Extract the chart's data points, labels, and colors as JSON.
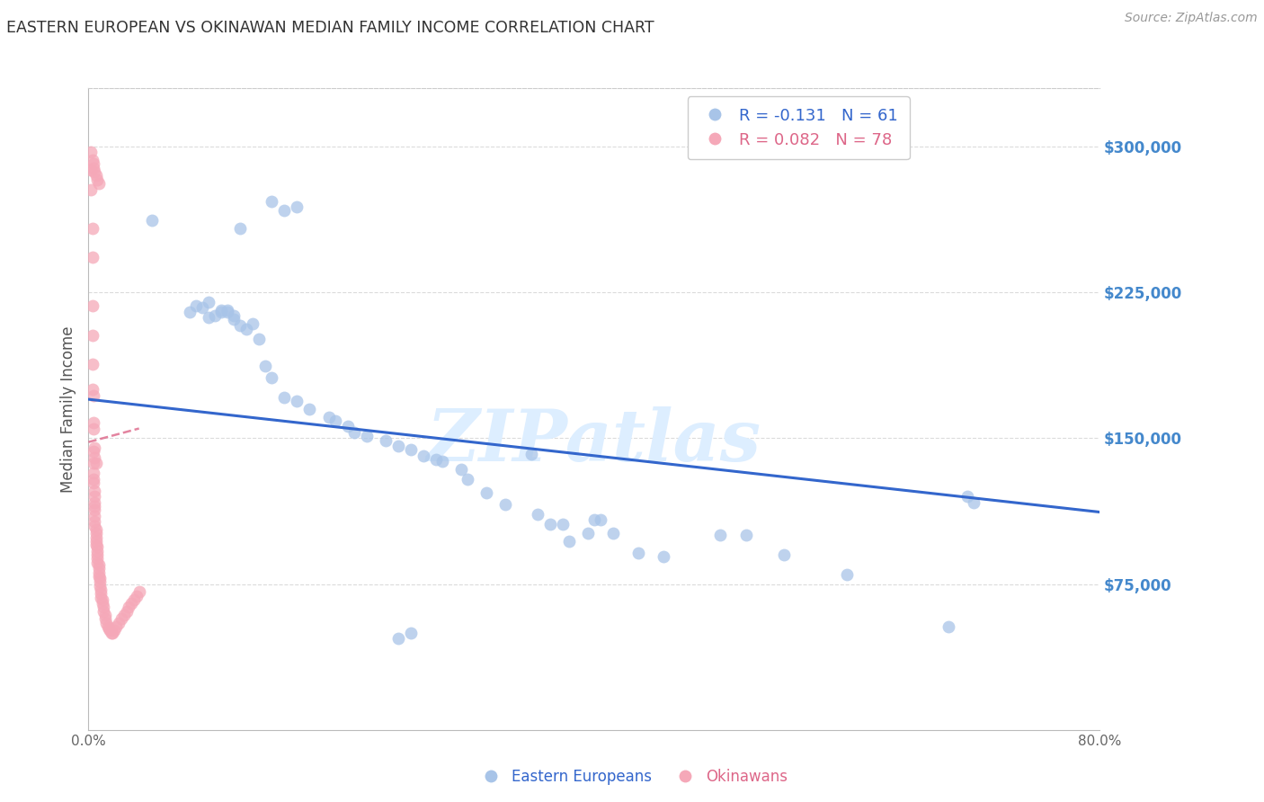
{
  "title": "EASTERN EUROPEAN VS OKINAWAN MEDIAN FAMILY INCOME CORRELATION CHART",
  "source": "Source: ZipAtlas.com",
  "ylabel": "Median Family Income",
  "ytick_labels": [
    "$75,000",
    "$150,000",
    "$225,000",
    "$300,000"
  ],
  "ytick_values": [
    75000,
    150000,
    225000,
    300000
  ],
  "ymin": 0,
  "ymax": 330000,
  "xmin": 0.0,
  "xmax": 0.8,
  "watermark": "ZIPatlas",
  "blue_scatter_x": [
    0.05,
    0.12,
    0.145,
    0.155,
    0.165,
    0.08,
    0.085,
    0.09,
    0.095,
    0.095,
    0.1,
    0.105,
    0.105,
    0.11,
    0.11,
    0.115,
    0.115,
    0.12,
    0.125,
    0.13,
    0.135,
    0.14,
    0.145,
    0.155,
    0.165,
    0.175,
    0.19,
    0.195,
    0.205,
    0.21,
    0.22,
    0.235,
    0.245,
    0.255,
    0.265,
    0.275,
    0.28,
    0.295,
    0.3,
    0.315,
    0.33,
    0.355,
    0.365,
    0.375,
    0.395,
    0.415,
    0.435,
    0.455,
    0.35,
    0.38,
    0.245,
    0.255,
    0.695,
    0.68,
    0.4,
    0.405,
    0.5,
    0.52,
    0.55,
    0.6,
    0.7
  ],
  "blue_scatter_y": [
    262000,
    258000,
    272000,
    267000,
    269000,
    215000,
    218000,
    217000,
    220000,
    212000,
    213000,
    216000,
    215000,
    216000,
    215000,
    213000,
    211000,
    208000,
    206000,
    209000,
    201000,
    187000,
    181000,
    171000,
    169000,
    165000,
    161000,
    159000,
    156000,
    153000,
    151000,
    149000,
    146000,
    144000,
    141000,
    139000,
    138000,
    134000,
    129000,
    122000,
    116000,
    111000,
    106000,
    106000,
    101000,
    101000,
    91000,
    89000,
    142000,
    97000,
    47000,
    50000,
    120000,
    53000,
    108000,
    108000,
    100000,
    100000,
    90000,
    80000,
    117000
  ],
  "pink_scatter_x": [
    0.002,
    0.002,
    0.003,
    0.003,
    0.003,
    0.003,
    0.003,
    0.004,
    0.004,
    0.004,
    0.004,
    0.004,
    0.004,
    0.004,
    0.005,
    0.005,
    0.005,
    0.005,
    0.005,
    0.005,
    0.005,
    0.005,
    0.006,
    0.006,
    0.006,
    0.006,
    0.006,
    0.007,
    0.007,
    0.007,
    0.007,
    0.007,
    0.008,
    0.008,
    0.008,
    0.008,
    0.009,
    0.009,
    0.009,
    0.01,
    0.01,
    0.01,
    0.011,
    0.011,
    0.012,
    0.012,
    0.013,
    0.013,
    0.014,
    0.015,
    0.016,
    0.017,
    0.018,
    0.019,
    0.02,
    0.022,
    0.024,
    0.026,
    0.028,
    0.03,
    0.032,
    0.034,
    0.036,
    0.038,
    0.04,
    0.002,
    0.003,
    0.004,
    0.004,
    0.005,
    0.006,
    0.007,
    0.008,
    0.003,
    0.004,
    0.005,
    0.005,
    0.006
  ],
  "pink_scatter_y": [
    288000,
    278000,
    258000,
    243000,
    218000,
    203000,
    188000,
    172000,
    158000,
    143000,
    137000,
    132000,
    129000,
    127000,
    123000,
    120000,
    117000,
    115000,
    113000,
    110000,
    107000,
    105000,
    103000,
    101000,
    99000,
    97000,
    95000,
    94000,
    92000,
    90000,
    88000,
    86000,
    85000,
    83000,
    81000,
    79000,
    78000,
    76000,
    74000,
    72000,
    70000,
    68000,
    67000,
    65000,
    63000,
    61000,
    59000,
    57000,
    55000,
    53000,
    52000,
    51000,
    50000,
    50000,
    51000,
    53000,
    55000,
    57000,
    59000,
    61000,
    63000,
    65000,
    67000,
    69000,
    71000,
    297000,
    293000,
    291000,
    289000,
    287000,
    285000,
    283000,
    281000,
    175000,
    155000,
    145000,
    140000,
    137000
  ],
  "blue_line_x": [
    0.0,
    0.8
  ],
  "blue_line_y": [
    170000,
    112000
  ],
  "pink_line_x": [
    0.0,
    0.04
  ],
  "pink_line_y": [
    148000,
    155000
  ],
  "blue_color": "#a8c4e8",
  "pink_color": "#f5a8b8",
  "blue_line_color": "#3366cc",
  "pink_line_color": "#dd6688",
  "background_color": "#ffffff",
  "grid_color": "#cccccc",
  "title_color": "#333333",
  "right_axis_color": "#4488cc",
  "watermark_color": "#ddeeff"
}
